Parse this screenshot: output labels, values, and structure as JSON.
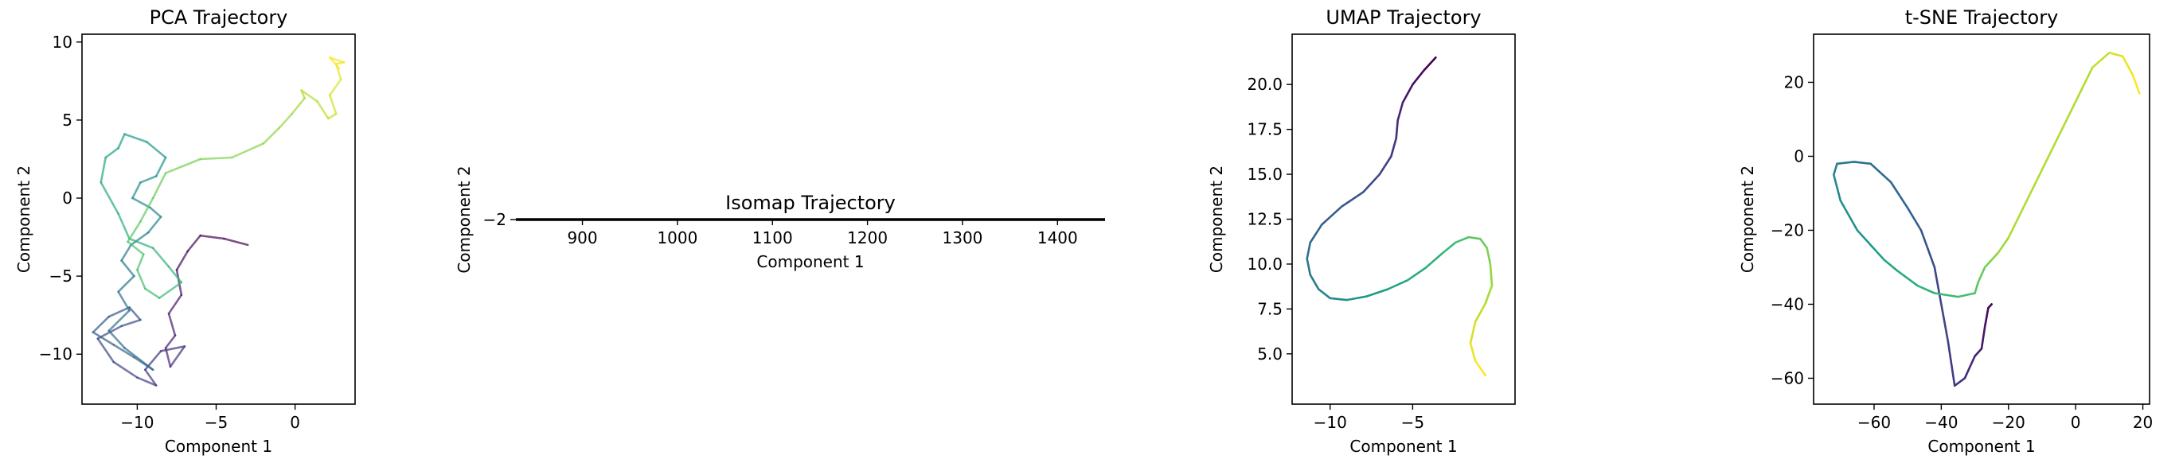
{
  "chart_data": [
    {
      "type": "line",
      "title": "PCA Trajectory",
      "xlabel": "Component 1",
      "ylabel": "Component 2",
      "xlim": [
        -13.5,
        3.8
      ],
      "ylim": [
        -13.2,
        10.5
      ],
      "xticks": [
        -10,
        -5,
        0
      ],
      "yticks": [
        -10,
        -5,
        0,
        5,
        10
      ],
      "colormap": "viridis",
      "alpha": 0.7,
      "series": [
        {
          "x": [
            -3.0,
            -4.5,
            -6.0,
            -6.8,
            -7.5,
            -7.2,
            -8.0,
            -7.6,
            -8.2,
            -7.9,
            -7.0,
            -8.5,
            -9.5,
            -8.8,
            -10.0,
            -11.5,
            -12.5,
            -11.0,
            -9.8,
            -10.5,
            -11.8,
            -12.8,
            -11.5,
            -10.2,
            -9.0,
            -10.8,
            -11.8,
            -10.5,
            -11.2,
            -10.2,
            -11.0,
            -10.4,
            -9.3,
            -8.5,
            -9.2,
            -10.3,
            -9.8,
            -8.8,
            -8.2,
            -9.4,
            -10.8,
            -11.2,
            -12.0,
            -12.3,
            -11.2,
            -10.5,
            -9.0,
            -8.0,
            -7.2,
            -8.6,
            -9.5,
            -10.0,
            -9.6,
            -10.6,
            -9.8,
            -9.0,
            -8.2,
            -6.0,
            -4.0,
            -2.0,
            -1.0,
            -0.2,
            0.6,
            0.4,
            1.4,
            2.1,
            2.6,
            2.2,
            2.9,
            2.6,
            3.1,
            2.2,
            2.8
          ],
          "y": [
            -3.0,
            -2.6,
            -2.4,
            -3.4,
            -4.6,
            -6.2,
            -7.4,
            -8.8,
            -9.6,
            -10.8,
            -9.5,
            -9.8,
            -11.0,
            -12.0,
            -11.5,
            -10.5,
            -9.0,
            -8.2,
            -7.8,
            -7.0,
            -7.6,
            -8.6,
            -9.4,
            -10.2,
            -11.0,
            -9.6,
            -8.5,
            -7.2,
            -6.0,
            -5.0,
            -4.0,
            -3.0,
            -2.2,
            -1.2,
            -0.6,
            0.0,
            1.0,
            1.4,
            2.6,
            3.6,
            4.1,
            3.2,
            2.6,
            1.0,
            -1.0,
            -2.6,
            -3.2,
            -4.4,
            -5.4,
            -6.4,
            -5.8,
            -4.6,
            -3.6,
            -2.8,
            -1.5,
            0.0,
            1.6,
            2.5,
            2.6,
            3.5,
            4.5,
            5.4,
            6.4,
            6.9,
            6.2,
            5.1,
            5.4,
            6.6,
            7.6,
            8.6,
            8.7,
            9.0,
            8.3
          ]
        }
      ]
    },
    {
      "type": "line",
      "title": "Isomap Trajectory",
      "xlabel": "Component 1",
      "ylabel": "Component 2",
      "xlim": [
        830,
        1450
      ],
      "ylim": [
        -2.002,
        -1.998
      ],
      "xticks": [
        900,
        1000,
        1100,
        1200,
        1300,
        1400
      ],
      "yticks": [
        -2
      ],
      "series": [
        {
          "x": [
            830,
            1450
          ],
          "y": [
            -2,
            -2
          ]
        }
      ]
    },
    {
      "type": "line",
      "title": "UMAP Trajectory",
      "xlabel": "Component 1",
      "ylabel": "Component 2",
      "xlim": [
        -12.3,
        1.2
      ],
      "ylim": [
        2.2,
        22.8
      ],
      "xticks": [
        -10,
        -5
      ],
      "yticks": [
        5.0,
        7.5,
        10.0,
        12.5,
        15.0,
        17.5,
        20.0
      ],
      "ytick_labels": [
        "5.0",
        "7.5",
        "10.0",
        "12.5",
        "15.0",
        "17.5",
        "20.0"
      ],
      "colormap": "viridis",
      "series": [
        {
          "x": [
            -3.6,
            -4.3,
            -5.0,
            -5.6,
            -5.9,
            -6.0,
            -6.3,
            -7.0,
            -8.0,
            -9.3,
            -10.5,
            -11.2,
            -11.4,
            -11.2,
            -10.7,
            -10.0,
            -9.0,
            -7.8,
            -6.5,
            -5.3,
            -4.2,
            -3.2,
            -2.4,
            -1.6,
            -0.9,
            -0.5,
            -0.3,
            -0.2,
            -0.6,
            -1.2,
            -1.5,
            -1.2,
            -0.6
          ],
          "y": [
            21.5,
            20.8,
            20.0,
            19.0,
            18.0,
            17.0,
            16.0,
            15.0,
            14.0,
            13.2,
            12.2,
            11.2,
            10.3,
            9.4,
            8.6,
            8.1,
            8.0,
            8.2,
            8.6,
            9.1,
            9.8,
            10.6,
            11.2,
            11.5,
            11.4,
            10.9,
            10.0,
            8.8,
            7.8,
            6.8,
            5.6,
            4.6,
            3.8
          ]
        }
      ]
    },
    {
      "type": "line",
      "title": "t-SNE Trajectory",
      "xlabel": "Component 1",
      "ylabel": "Component 2",
      "xlim": [
        -78,
        22
      ],
      "ylim": [
        -67,
        33
      ],
      "xticks": [
        -60,
        -40,
        -20,
        0,
        20
      ],
      "yticks": [
        -60,
        -40,
        -20,
        0,
        20
      ],
      "colormap": "viridis",
      "series": [
        {
          "x": [
            -25,
            -26,
            -27,
            -28,
            -30,
            -33,
            -36,
            -38,
            -42,
            -44,
            -46,
            -50,
            -55,
            -61,
            -66,
            -71,
            -72,
            -70,
            -65,
            -60,
            -57,
            -53,
            -47,
            -42,
            -35,
            -30,
            -29,
            -27,
            -25,
            -23,
            -20,
            5,
            10,
            14,
            17,
            19
          ],
          "y": [
            -40,
            -41,
            -46,
            -52,
            -54,
            -60,
            -62,
            -50,
            -30,
            -25,
            -20,
            -14,
            -7,
            -2,
            -1.5,
            -2,
            -5,
            -12,
            -20,
            -25,
            -28,
            -31,
            -35,
            -37,
            -38,
            -37,
            -34,
            -30,
            -28,
            -26,
            -22,
            24,
            28,
            27,
            22,
            17
          ]
        }
      ]
    }
  ]
}
